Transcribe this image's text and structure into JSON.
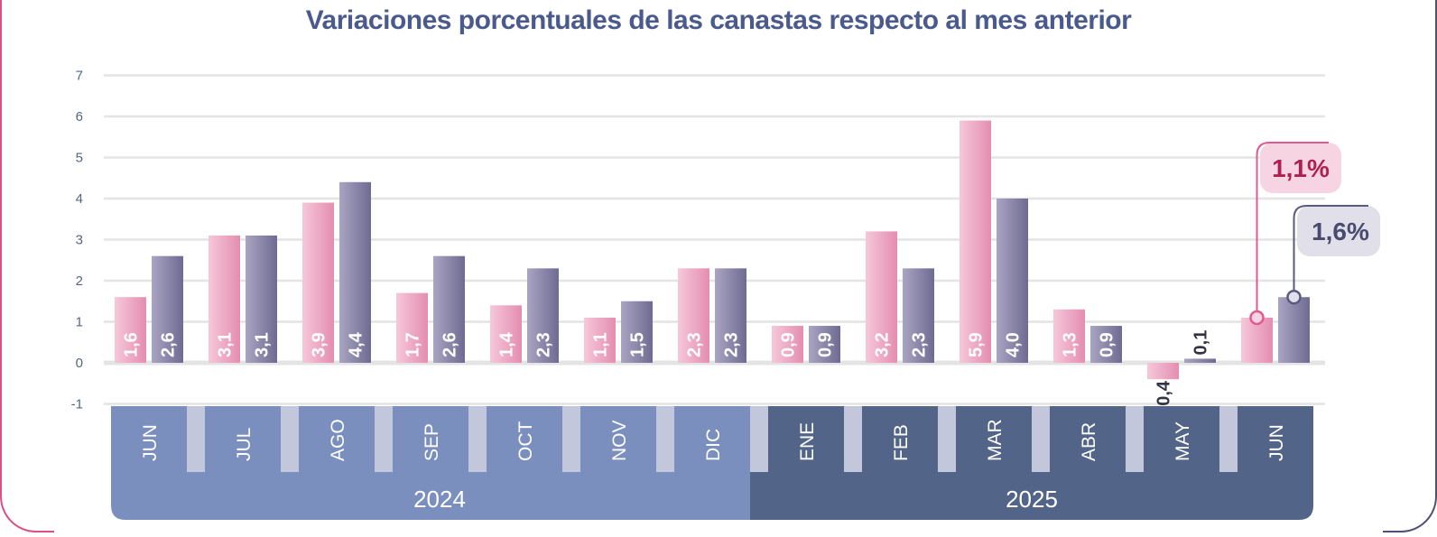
{
  "chart_data": {
    "type": "bar",
    "title": "Variaciones porcentuales de las canastas respecto al mes anterior",
    "categories": [
      "JUN",
      "JUL",
      "AGO",
      "SEP",
      "OCT",
      "NOV",
      "DIC",
      "ENE",
      "FEB",
      "MAR",
      "ABR",
      "MAY",
      "JUN"
    ],
    "years": [
      {
        "label": "2024",
        "from": 0,
        "to": 6
      },
      {
        "label": "2025",
        "from": 7,
        "to": 12
      }
    ],
    "series": [
      {
        "values": [
          1.6,
          3.1,
          3.9,
          1.7,
          1.4,
          1.1,
          2.3,
          0.9,
          3.2,
          5.9,
          1.3,
          -0.4,
          1.1
        ],
        "labels": [
          "1,6",
          "3,1",
          "3,9",
          "1,7",
          "1,4",
          "1,1",
          "2,3",
          "0,9",
          "3,2",
          "5,9",
          "1,3",
          "-0,4",
          ""
        ],
        "color": "#e8a0bd"
      },
      {
        "values": [
          2.6,
          3.1,
          4.4,
          2.6,
          2.3,
          1.5,
          2.3,
          0.9,
          2.3,
          4.0,
          0.9,
          0.1,
          1.6
        ],
        "labels": [
          "2,6",
          "3,1",
          "4,4",
          "2,6",
          "2,3",
          "1,5",
          "2,3",
          "0,9",
          "2,3",
          "4,0",
          "0,9",
          "0,1",
          ""
        ],
        "color": "#7f7aa0"
      }
    ],
    "yticks": [
      "-1",
      "0",
      "1",
      "2",
      "3",
      "4",
      "5",
      "6",
      "7"
    ],
    "ylim": [
      -1,
      7
    ],
    "grid": true,
    "callouts": [
      {
        "series": 0,
        "text": "1,1%"
      },
      {
        "series": 1,
        "text": "1,6%"
      }
    ]
  },
  "colors": {
    "title": "#4a5a8c",
    "pink_dark": "#e05a92",
    "purple_dark": "#5a5a80",
    "axis_2024": "#7b8fbf",
    "axis_2025": "#536489",
    "gap": "#c2c7db",
    "grid": "#e4e4e4",
    "tick": "#5a6480",
    "bar_label": "#ffffff",
    "callout_pink_text": "#b0204f",
    "callout_purple_text": "#4a4a70"
  }
}
